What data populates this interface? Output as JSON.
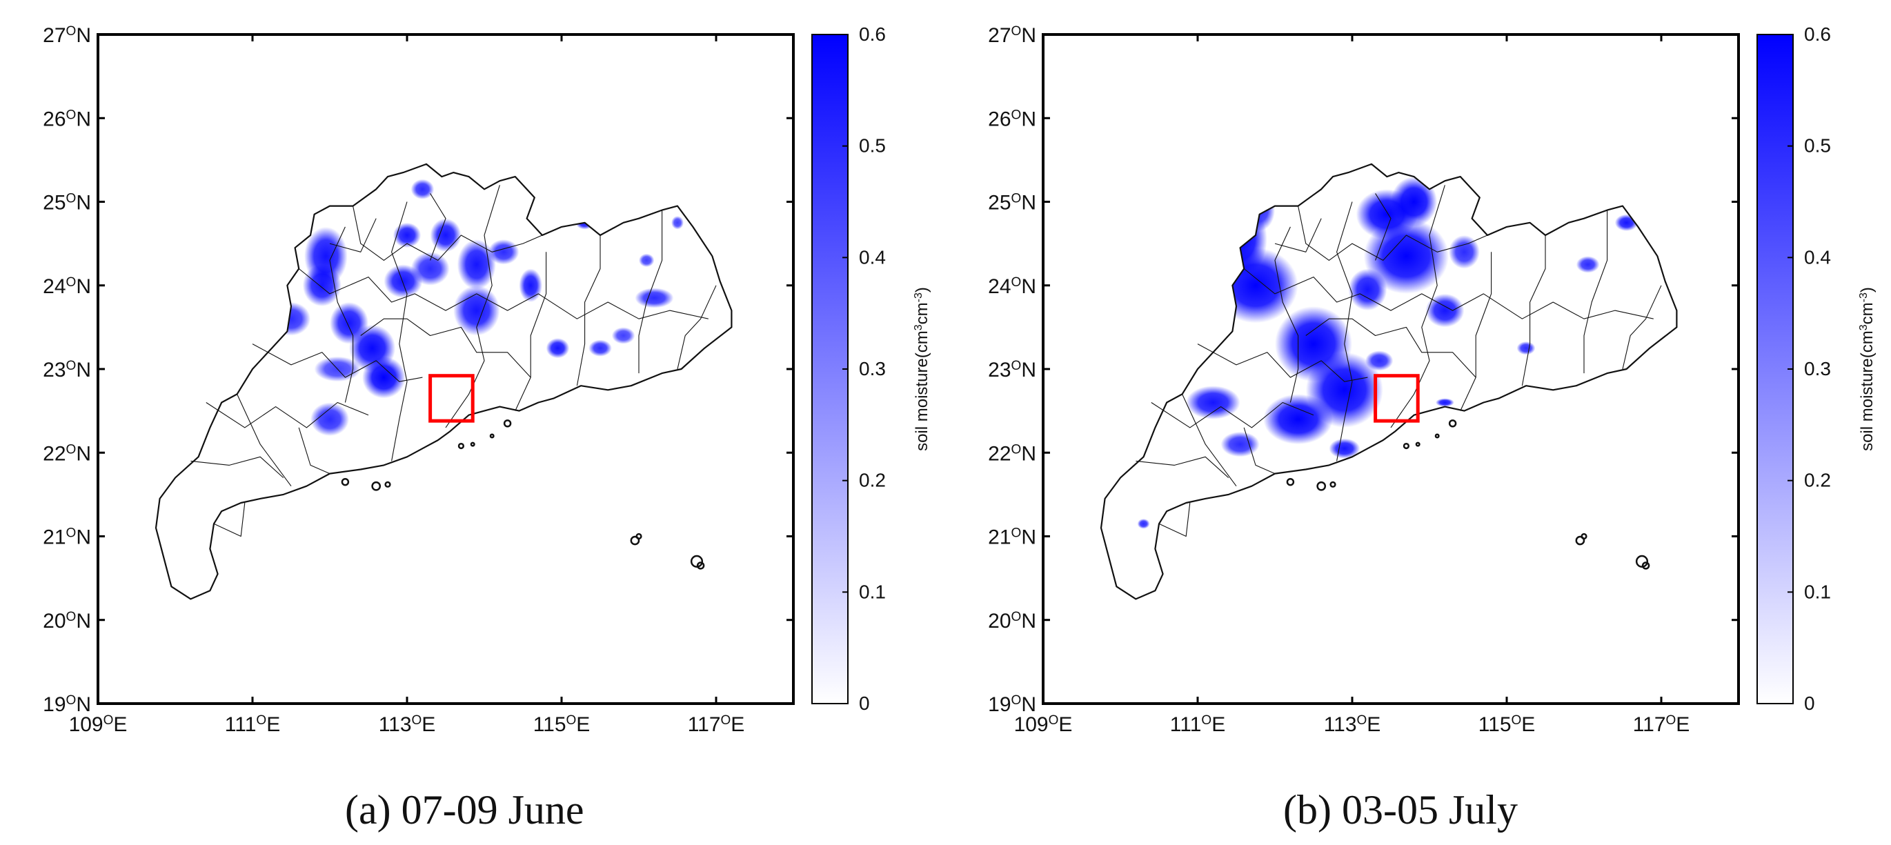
{
  "figure": {
    "panels": [
      {
        "id": "a",
        "caption": "(a) 07-09 June",
        "highlight_box": {
          "lon_range": [
            113.3,
            113.85
          ],
          "lat_range": [
            22.38,
            22.92
          ],
          "color": "#ff0000"
        },
        "moisture_spots": [
          {
            "lon": 111.95,
            "lat": 24.35,
            "rx": 0.28,
            "ry": 0.35,
            "value": 0.56
          },
          {
            "lon": 111.9,
            "lat": 24.0,
            "rx": 0.25,
            "ry": 0.25,
            "value": 0.55
          },
          {
            "lon": 111.5,
            "lat": 23.6,
            "rx": 0.25,
            "ry": 0.2,
            "value": 0.5
          },
          {
            "lon": 112.25,
            "lat": 23.55,
            "rx": 0.25,
            "ry": 0.25,
            "value": 0.55
          },
          {
            "lon": 112.55,
            "lat": 23.25,
            "rx": 0.3,
            "ry": 0.28,
            "value": 0.58
          },
          {
            "lon": 112.7,
            "lat": 22.9,
            "rx": 0.28,
            "ry": 0.25,
            "value": 0.6
          },
          {
            "lon": 112.1,
            "lat": 23.0,
            "rx": 0.3,
            "ry": 0.15,
            "value": 0.45
          },
          {
            "lon": 112.0,
            "lat": 22.4,
            "rx": 0.25,
            "ry": 0.2,
            "value": 0.5
          },
          {
            "lon": 112.95,
            "lat": 24.05,
            "rx": 0.25,
            "ry": 0.2,
            "value": 0.55
          },
          {
            "lon": 113.3,
            "lat": 24.2,
            "rx": 0.25,
            "ry": 0.2,
            "value": 0.5
          },
          {
            "lon": 113.5,
            "lat": 24.6,
            "rx": 0.2,
            "ry": 0.2,
            "value": 0.55
          },
          {
            "lon": 113.2,
            "lat": 25.15,
            "rx": 0.15,
            "ry": 0.12,
            "value": 0.5
          },
          {
            "lon": 113.0,
            "lat": 24.6,
            "rx": 0.18,
            "ry": 0.15,
            "value": 0.55
          },
          {
            "lon": 113.9,
            "lat": 23.7,
            "rx": 0.3,
            "ry": 0.3,
            "value": 0.55
          },
          {
            "lon": 113.9,
            "lat": 24.25,
            "rx": 0.25,
            "ry": 0.3,
            "value": 0.55
          },
          {
            "lon": 114.25,
            "lat": 24.4,
            "rx": 0.2,
            "ry": 0.15,
            "value": 0.5
          },
          {
            "lon": 114.6,
            "lat": 24.0,
            "rx": 0.15,
            "ry": 0.2,
            "value": 0.55
          },
          {
            "lon": 114.95,
            "lat": 23.25,
            "rx": 0.15,
            "ry": 0.12,
            "value": 0.55
          },
          {
            "lon": 115.3,
            "lat": 24.75,
            "rx": 0.12,
            "ry": 0.08,
            "value": 0.55
          },
          {
            "lon": 115.5,
            "lat": 23.25,
            "rx": 0.15,
            "ry": 0.1,
            "value": 0.5
          },
          {
            "lon": 115.8,
            "lat": 23.4,
            "rx": 0.15,
            "ry": 0.1,
            "value": 0.45
          },
          {
            "lon": 116.2,
            "lat": 23.85,
            "rx": 0.25,
            "ry": 0.12,
            "value": 0.5
          },
          {
            "lon": 116.1,
            "lat": 24.3,
            "rx": 0.1,
            "ry": 0.08,
            "value": 0.45
          },
          {
            "lon": 116.5,
            "lat": 24.75,
            "rx": 0.08,
            "ry": 0.08,
            "value": 0.45
          }
        ]
      },
      {
        "id": "b",
        "caption": "(b) 03-05 July",
        "highlight_box": {
          "lon_range": [
            113.3,
            113.85
          ],
          "lat_range": [
            22.38,
            22.92
          ],
          "color": "#ff0000"
        },
        "moisture_spots": [
          {
            "lon": 111.55,
            "lat": 24.55,
            "rx": 0.35,
            "ry": 0.45,
            "value": 0.6
          },
          {
            "lon": 111.75,
            "lat": 24.0,
            "rx": 0.55,
            "ry": 0.45,
            "value": 0.6
          },
          {
            "lon": 111.8,
            "lat": 24.9,
            "rx": 0.2,
            "ry": 0.25,
            "value": 0.5
          },
          {
            "lon": 111.15,
            "lat": 23.6,
            "rx": 0.3,
            "ry": 0.2,
            "value": 0.5
          },
          {
            "lon": 112.5,
            "lat": 23.3,
            "rx": 0.5,
            "ry": 0.45,
            "value": 0.62
          },
          {
            "lon": 112.9,
            "lat": 22.75,
            "rx": 0.5,
            "ry": 0.45,
            "value": 0.62
          },
          {
            "lon": 112.3,
            "lat": 22.4,
            "rx": 0.45,
            "ry": 0.3,
            "value": 0.62
          },
          {
            "lon": 111.2,
            "lat": 22.6,
            "rx": 0.35,
            "ry": 0.2,
            "value": 0.55
          },
          {
            "lon": 111.55,
            "lat": 22.1,
            "rx": 0.25,
            "ry": 0.15,
            "value": 0.5
          },
          {
            "lon": 112.9,
            "lat": 22.05,
            "rx": 0.2,
            "ry": 0.12,
            "value": 0.55
          },
          {
            "lon": 113.7,
            "lat": 24.35,
            "rx": 0.55,
            "ry": 0.45,
            "value": 0.62
          },
          {
            "lon": 113.45,
            "lat": 24.85,
            "rx": 0.4,
            "ry": 0.3,
            "value": 0.62
          },
          {
            "lon": 113.8,
            "lat": 25.0,
            "rx": 0.3,
            "ry": 0.3,
            "value": 0.6
          },
          {
            "lon": 113.2,
            "lat": 23.95,
            "rx": 0.25,
            "ry": 0.25,
            "value": 0.55
          },
          {
            "lon": 114.2,
            "lat": 23.7,
            "rx": 0.25,
            "ry": 0.2,
            "value": 0.55
          },
          {
            "lon": 114.45,
            "lat": 24.4,
            "rx": 0.2,
            "ry": 0.2,
            "value": 0.5
          },
          {
            "lon": 113.35,
            "lat": 23.1,
            "rx": 0.18,
            "ry": 0.12,
            "value": 0.5
          },
          {
            "lon": 115.25,
            "lat": 23.25,
            "rx": 0.12,
            "ry": 0.08,
            "value": 0.5
          },
          {
            "lon": 116.05,
            "lat": 24.25,
            "rx": 0.15,
            "ry": 0.1,
            "value": 0.5
          },
          {
            "lon": 116.55,
            "lat": 24.75,
            "rx": 0.15,
            "ry": 0.1,
            "value": 0.55
          },
          {
            "lon": 114.2,
            "lat": 22.6,
            "rx": 0.12,
            "ry": 0.05,
            "value": 0.55
          },
          {
            "lon": 110.3,
            "lat": 21.15,
            "rx": 0.08,
            "ry": 0.06,
            "value": 0.5
          }
        ]
      }
    ],
    "map_extent": {
      "lon": [
        109,
        118
      ],
      "lat": [
        19,
        27
      ]
    },
    "x_ticks": [
      {
        "lon": 109,
        "deg": "109",
        "sup": "O",
        "hemi": "E"
      },
      {
        "lon": 111,
        "deg": "111",
        "sup": "O",
        "hemi": "E"
      },
      {
        "lon": 113,
        "deg": "113",
        "sup": "O",
        "hemi": "E"
      },
      {
        "lon": 115,
        "deg": "115",
        "sup": "O",
        "hemi": "E"
      },
      {
        "lon": 117,
        "deg": "117",
        "sup": "O",
        "hemi": "E"
      }
    ],
    "y_ticks": [
      {
        "lat": 19,
        "deg": "19",
        "sup": "O",
        "hemi": "N"
      },
      {
        "lat": 20,
        "deg": "20",
        "sup": "O",
        "hemi": "N"
      },
      {
        "lat": 21,
        "deg": "21",
        "sup": "O",
        "hemi": "N"
      },
      {
        "lat": 22,
        "deg": "22",
        "sup": "O",
        "hemi": "N"
      },
      {
        "lat": 23,
        "deg": "23",
        "sup": "O",
        "hemi": "N"
      },
      {
        "lat": 24,
        "deg": "24",
        "sup": "O",
        "hemi": "N"
      },
      {
        "lat": 25,
        "deg": "25",
        "sup": "O",
        "hemi": "N"
      },
      {
        "lat": 26,
        "deg": "26",
        "sup": "O",
        "hemi": "N"
      },
      {
        "lat": 27,
        "deg": "27",
        "sup": "O",
        "hemi": "N"
      }
    ],
    "colorbar": {
      "ticks": [
        "0",
        "0.1",
        "0.2",
        "0.3",
        "0.4",
        "0.5",
        "0.6"
      ],
      "range": [
        0,
        0.6
      ],
      "label_parts": [
        "soil moisture(cm",
        "3",
        "cm",
        "-3",
        ")"
      ],
      "color_low": "#ffffff",
      "color_high": "#0000ff"
    }
  }
}
